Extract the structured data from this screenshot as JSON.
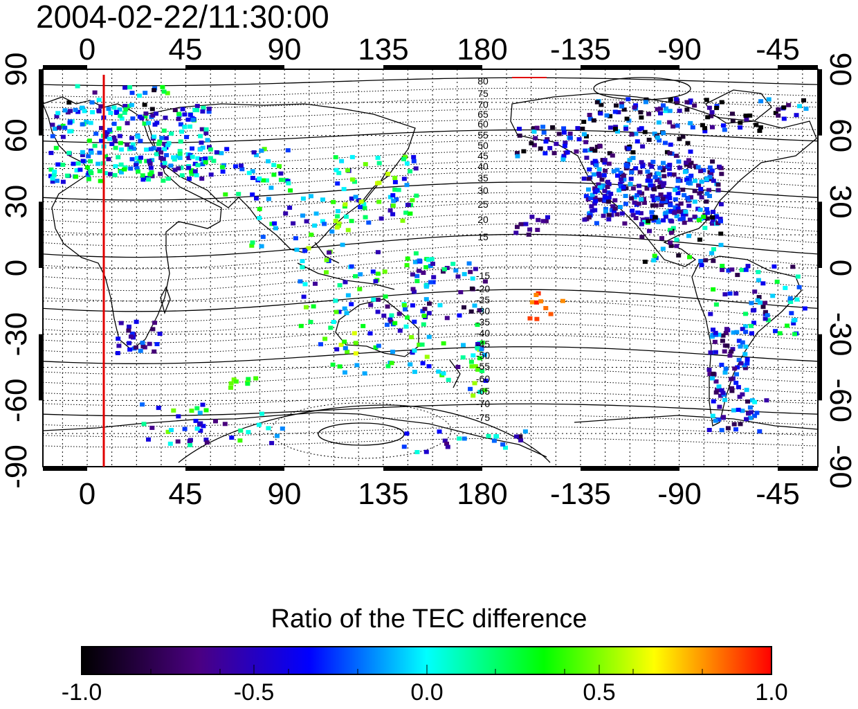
{
  "title": "2004-02-22/11:30:00",
  "map": {
    "top_lon_ticks": [
      "0",
      "45",
      "90",
      "135",
      "180",
      "-135",
      "-90",
      "-45"
    ],
    "bottom_lon_ticks": [
      "0",
      "45",
      "90",
      "135",
      "180",
      "-135",
      "-90",
      "-45"
    ],
    "left_lat_ticks": [
      "90",
      "60",
      "30",
      "0",
      "-30",
      "-60",
      "-90"
    ],
    "right_lat_ticks": [
      "90",
      "60",
      "30",
      "0",
      "-30",
      "-60",
      "-90"
    ],
    "magnetic_latitude_labels": [
      "80",
      "75",
      "70",
      "65",
      "60",
      "55",
      "50",
      "45",
      "40",
      "35",
      "30",
      "25",
      "20",
      "15",
      "-15",
      "-20",
      "-25",
      "-30",
      "-35",
      "-40",
      "-45",
      "-50",
      "-55",
      "-60",
      "-65",
      "-70",
      "-75"
    ],
    "terminator_color": "#e00000",
    "grid": true
  },
  "colorbar": {
    "title": "Ratio of the TEC difference",
    "ticks": [
      "-1.0",
      "-0.5",
      "0.0",
      "0.5",
      "1.0"
    ],
    "range": [
      -1.0,
      1.0
    ],
    "colormap": [
      "#000000",
      "#4b0082",
      "#0000ff",
      "#00ffff",
      "#00ff00",
      "#ffff00",
      "#ff0000"
    ]
  }
}
